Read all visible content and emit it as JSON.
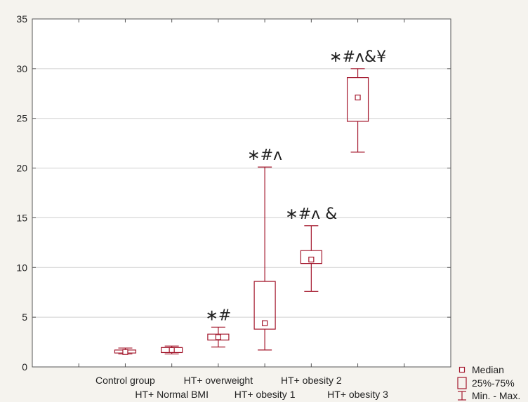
{
  "chart_data": {
    "type": "box",
    "title": "",
    "xlabel": "",
    "ylabel": "",
    "ylim": [
      0,
      35
    ],
    "yticks": [
      0,
      5,
      10,
      15,
      20,
      25,
      30,
      35
    ],
    "grid": "horizontal",
    "colors": {
      "box": "#a4192e",
      "grid": "#cfcfcf",
      "axis": "#555555",
      "background": "#f5f3ee",
      "plot_background": "#ffffff"
    },
    "categories": [
      "Control group",
      "HT+ Normal BMI",
      "HT+ overweight",
      "HT+ obesity 1",
      "HT+ obesity 2",
      "HT+ obesity 3"
    ],
    "boxes": [
      {
        "category": "Control group",
        "min": 1.3,
        "q1": 1.4,
        "median": 1.5,
        "q3": 1.7,
        "max": 1.9,
        "significance": ""
      },
      {
        "category": "HT+ Normal BMI",
        "min": 1.3,
        "q1": 1.45,
        "median": 1.7,
        "q3": 1.95,
        "max": 2.1,
        "significance": ""
      },
      {
        "category": "HT+ overweight",
        "min": 2.0,
        "q1": 2.7,
        "median": 3.0,
        "q3": 3.3,
        "max": 4.0,
        "significance": "∗#"
      },
      {
        "category": "HT+ obesity 1",
        "min": 1.7,
        "q1": 3.8,
        "median": 4.4,
        "q3": 8.6,
        "max": 20.1,
        "significance": "∗#ʌ"
      },
      {
        "category": "HT+ obesity 2",
        "min": 7.6,
        "q1": 10.4,
        "median": 10.8,
        "q3": 11.7,
        "max": 14.2,
        "significance": "∗#ʌ &"
      },
      {
        "category": "HT+ obesity 3",
        "min": 21.6,
        "q1": 24.7,
        "median": 27.1,
        "q3": 29.1,
        "max": 30.0,
        "significance": "∗#ʌ&¥"
      }
    ],
    "legend": {
      "position": "bottom-right",
      "items": [
        "Median",
        "25%-75%",
        "Min. - Max."
      ]
    }
  }
}
